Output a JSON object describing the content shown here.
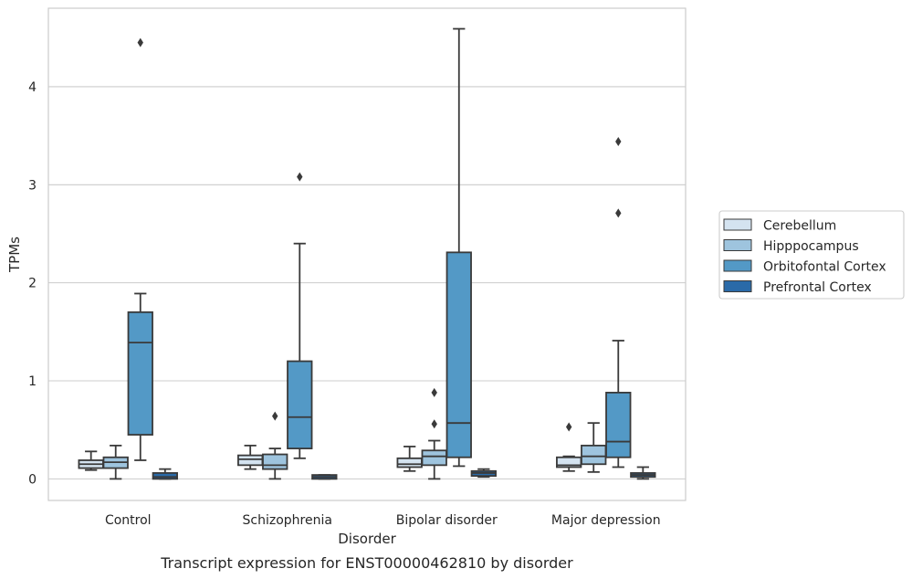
{
  "chart_data": {
    "type": "box",
    "title": "",
    "caption": "Transcript expression for ENST00000462810 by disorder",
    "xlabel": "Disorder",
    "ylabel": "TPMs",
    "ylim": [
      -0.22,
      4.8
    ],
    "yticks": [
      0,
      1,
      2,
      3,
      4
    ],
    "grid": "y",
    "legend_placement": "right",
    "categories": [
      "Control",
      "Schizophrenia",
      "Bipolar disorder",
      "Major depression"
    ],
    "series": [
      {
        "name": "Cerebellum",
        "color": "#d4e3f0",
        "boxes": [
          {
            "whislo": 0.09,
            "q1": 0.11,
            "med": 0.15,
            "q3": 0.19,
            "whishi": 0.28,
            "fliers": []
          },
          {
            "whislo": 0.1,
            "q1": 0.14,
            "med": 0.2,
            "q3": 0.24,
            "whishi": 0.34,
            "fliers": []
          },
          {
            "whislo": 0.08,
            "q1": 0.12,
            "med": 0.15,
            "q3": 0.21,
            "whishi": 0.33,
            "fliers": []
          },
          {
            "whislo": 0.08,
            "q1": 0.12,
            "med": 0.14,
            "q3": 0.22,
            "whishi": 0.23,
            "fliers": [
              0.53
            ]
          }
        ]
      },
      {
        "name": "Hipppocampus",
        "color": "#9ec4de",
        "boxes": [
          {
            "whislo": 0.0,
            "q1": 0.11,
            "med": 0.17,
            "q3": 0.22,
            "whishi": 0.34,
            "fliers": []
          },
          {
            "whislo": 0.0,
            "q1": 0.1,
            "med": 0.14,
            "q3": 0.25,
            "whishi": 0.31,
            "fliers": [
              0.64
            ]
          },
          {
            "whislo": 0.0,
            "q1": 0.14,
            "med": 0.23,
            "q3": 0.29,
            "whishi": 0.39,
            "fliers": [
              0.56,
              0.88
            ]
          },
          {
            "whislo": 0.07,
            "q1": 0.15,
            "med": 0.23,
            "q3": 0.34,
            "whishi": 0.57,
            "fliers": []
          }
        ]
      },
      {
        "name": "Orbitofontal Cortex",
        "color": "#5399c6",
        "boxes": [
          {
            "whislo": 0.19,
            "q1": 0.45,
            "med": 1.39,
            "q3": 1.7,
            "whishi": 1.89,
            "fliers": [
              4.45
            ]
          },
          {
            "whislo": 0.21,
            "q1": 0.31,
            "med": 0.63,
            "q3": 1.2,
            "whishi": 2.4,
            "fliers": [
              3.08
            ]
          },
          {
            "whislo": 0.13,
            "q1": 0.22,
            "med": 0.57,
            "q3": 2.31,
            "whishi": 4.59,
            "fliers": []
          },
          {
            "whislo": 0.12,
            "q1": 0.22,
            "med": 0.38,
            "q3": 0.88,
            "whishi": 1.41,
            "fliers": [
              2.71,
              3.44
            ]
          }
        ]
      },
      {
        "name": "Prefrontal Cortex",
        "color": "#2a6aa8",
        "boxes": [
          {
            "whislo": 0.0,
            "q1": 0.0,
            "med": 0.02,
            "q3": 0.06,
            "whishi": 0.1,
            "fliers": []
          },
          {
            "whislo": 0.0,
            "q1": 0.0,
            "med": 0.02,
            "q3": 0.04,
            "whishi": 0.04,
            "fliers": []
          },
          {
            "whislo": 0.02,
            "q1": 0.03,
            "med": 0.06,
            "q3": 0.08,
            "whishi": 0.1,
            "fliers": []
          },
          {
            "whislo": 0.0,
            "q1": 0.02,
            "med": 0.04,
            "q3": 0.06,
            "whishi": 0.12,
            "fliers": []
          }
        ]
      }
    ]
  }
}
